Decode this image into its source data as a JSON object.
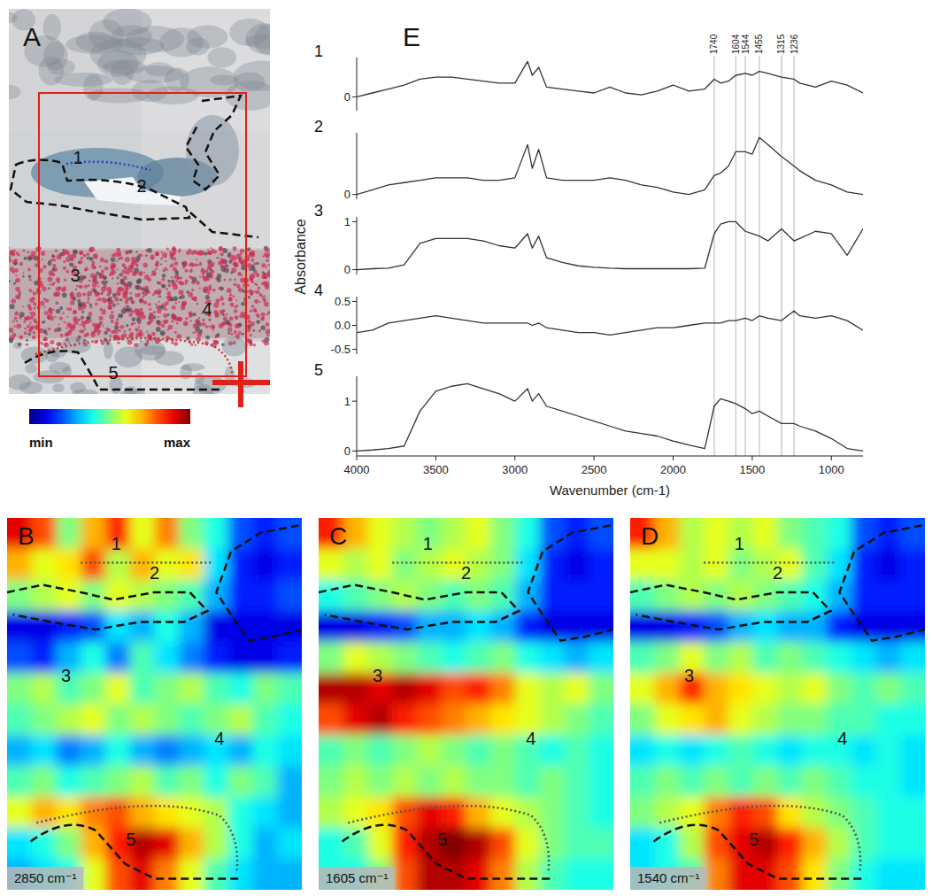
{
  "spectra_label": "E",
  "photo": {
    "title": "A",
    "region_labels": [
      "1",
      "2",
      "3",
      "4",
      "5"
    ]
  },
  "colorbar": {
    "range": [
      0,
      1
    ],
    "ticks": [
      {
        "value": 0,
        "label": "min"
      },
      {
        "value": 1,
        "label": "max"
      }
    ]
  },
  "chart_data": [
    {
      "type": "line",
      "title": "1",
      "color": "#333333",
      "tick_labels": "y",
      "xlim": [
        4000,
        800
      ],
      "ylim": [
        -0.35,
        1.0
      ],
      "yticks": [
        0
      ],
      "marker_lines": [
        1740,
        1604,
        1544,
        1455,
        1315,
        1236
      ],
      "x": [
        4000,
        3900,
        3800,
        3700,
        3600,
        3500,
        3400,
        3300,
        3200,
        3100,
        3000,
        2920,
        2890,
        2850,
        2800,
        2700,
        2600,
        2500,
        2400,
        2300,
        2200,
        2100,
        2000,
        1900,
        1800,
        1740,
        1700,
        1650,
        1604,
        1544,
        1500,
        1455,
        1400,
        1315,
        1236,
        1200,
        1100,
        1000,
        900,
        800
      ],
      "values": [
        0.0,
        0.1,
        0.2,
        0.3,
        0.45,
        0.5,
        0.5,
        0.45,
        0.4,
        0.35,
        0.35,
        0.9,
        0.55,
        0.75,
        0.25,
        0.2,
        0.15,
        0.1,
        0.25,
        0.1,
        0.05,
        0.15,
        0.3,
        0.15,
        0.2,
        0.45,
        0.35,
        0.4,
        0.55,
        0.6,
        0.55,
        0.65,
        0.6,
        0.5,
        0.45,
        0.35,
        0.25,
        0.4,
        0.3,
        0.1
      ]
    },
    {
      "type": "line",
      "title": "2",
      "color": "#333333",
      "tick_labels": "y",
      "xlim": [
        4000,
        800
      ],
      "ylim": [
        -0.1,
        1.3
      ],
      "yticks": [
        0
      ],
      "x": [
        4000,
        3900,
        3800,
        3700,
        3600,
        3500,
        3400,
        3300,
        3200,
        3100,
        3000,
        2920,
        2890,
        2850,
        2800,
        2700,
        2600,
        2500,
        2400,
        2300,
        2200,
        2100,
        2000,
        1900,
        1800,
        1740,
        1700,
        1650,
        1604,
        1544,
        1500,
        1455,
        1400,
        1315,
        1236,
        1200,
        1100,
        1000,
        900,
        800
      ],
      "values": [
        0.0,
        0.1,
        0.2,
        0.25,
        0.3,
        0.35,
        0.35,
        0.35,
        0.3,
        0.3,
        0.35,
        1.05,
        0.55,
        0.95,
        0.35,
        0.3,
        0.3,
        0.3,
        0.35,
        0.3,
        0.2,
        0.15,
        0.05,
        0.0,
        0.1,
        0.4,
        0.45,
        0.6,
        0.9,
        0.9,
        0.85,
        1.2,
        1.05,
        0.8,
        0.6,
        0.5,
        0.3,
        0.2,
        0.05,
        0.0
      ]
    },
    {
      "type": "line",
      "title": "3",
      "color": "#333333",
      "tick_labels": "y",
      "y_label": "Absorbance",
      "xlim": [
        4000,
        800
      ],
      "ylim": [
        -0.1,
        1.1
      ],
      "yticks": [
        0,
        1
      ],
      "x": [
        4000,
        3900,
        3800,
        3700,
        3600,
        3500,
        3400,
        3300,
        3200,
        3100,
        3000,
        2920,
        2890,
        2850,
        2800,
        2700,
        2600,
        2500,
        2400,
        2300,
        2200,
        2100,
        2000,
        1900,
        1800,
        1740,
        1700,
        1650,
        1604,
        1544,
        1500,
        1455,
        1400,
        1315,
        1236,
        1200,
        1100,
        1000,
        900,
        800
      ],
      "values": [
        0.0,
        0.02,
        0.03,
        0.1,
        0.55,
        0.65,
        0.65,
        0.65,
        0.6,
        0.5,
        0.45,
        0.75,
        0.45,
        0.7,
        0.25,
        0.15,
        0.08,
        0.05,
        0.03,
        0.02,
        0.02,
        0.02,
        0.02,
        0.02,
        0.03,
        0.75,
        0.95,
        1.0,
        1.0,
        0.8,
        0.75,
        0.7,
        0.6,
        0.85,
        0.6,
        0.65,
        0.8,
        0.75,
        0.3,
        0.85
      ]
    },
    {
      "type": "line",
      "title": "4",
      "color": "#333333",
      "tick_labels": "y",
      "xlim": [
        4000,
        800
      ],
      "ylim": [
        -0.6,
        0.6
      ],
      "yticks": [
        -0.5,
        {
          "value": 0,
          "label": "0.0"
        },
        0.5
      ],
      "x": [
        4000,
        3900,
        3800,
        3700,
        3600,
        3500,
        3400,
        3300,
        3200,
        3100,
        3000,
        2920,
        2890,
        2850,
        2800,
        2700,
        2600,
        2500,
        2400,
        2300,
        2200,
        2100,
        2000,
        1900,
        1800,
        1740,
        1700,
        1650,
        1604,
        1544,
        1500,
        1455,
        1400,
        1315,
        1236,
        1200,
        1100,
        1000,
        900,
        800
      ],
      "values": [
        -0.15,
        -0.1,
        0.05,
        0.1,
        0.15,
        0.2,
        0.15,
        0.1,
        0.05,
        0.05,
        0.05,
        0.05,
        0.0,
        0.05,
        -0.05,
        -0.1,
        -0.15,
        -0.15,
        -0.2,
        -0.15,
        -0.1,
        -0.05,
        -0.05,
        0.0,
        0.05,
        0.05,
        0.05,
        0.1,
        0.1,
        0.15,
        0.1,
        0.2,
        0.15,
        0.1,
        0.3,
        0.2,
        0.15,
        0.2,
        0.1,
        -0.1
      ]
    },
    {
      "type": "line",
      "title": "5",
      "color": "#333333",
      "x_label": "Wavenumber (cm-1)",
      "xlim": [
        4000,
        800
      ],
      "xticks": [
        4000,
        3500,
        3000,
        2500,
        2000,
        1500,
        1000
      ],
      "ylim": [
        -0.1,
        1.5
      ],
      "yticks": [
        0,
        1
      ],
      "x": [
        4000,
        3900,
        3800,
        3700,
        3600,
        3500,
        3400,
        3300,
        3200,
        3100,
        3000,
        2920,
        2890,
        2850,
        2800,
        2700,
        2600,
        2500,
        2400,
        2300,
        2200,
        2100,
        2000,
        1900,
        1800,
        1740,
        1700,
        1650,
        1604,
        1544,
        1500,
        1455,
        1400,
        1315,
        1236,
        1200,
        1100,
        1000,
        900,
        800
      ],
      "values": [
        0.0,
        0.02,
        0.05,
        0.1,
        0.8,
        1.2,
        1.3,
        1.35,
        1.25,
        1.15,
        1.0,
        1.25,
        1.0,
        1.15,
        0.9,
        0.8,
        0.7,
        0.6,
        0.5,
        0.4,
        0.35,
        0.3,
        0.2,
        0.12,
        0.05,
        0.9,
        1.05,
        1.0,
        0.95,
        0.85,
        0.75,
        0.8,
        0.7,
        0.55,
        0.55,
        0.5,
        0.4,
        0.25,
        0.05,
        0.0
      ]
    },
    {
      "type": "heatmap",
      "title": "B",
      "label": "2850 cm⁻¹",
      "region_labels": [
        "1",
        "2",
        "3",
        "4",
        "5"
      ],
      "cells": [
        [
          0.9,
          0.8,
          0.5,
          0.7,
          0.85,
          0.6,
          0.75,
          0.5,
          0.4,
          0.2,
          0.15,
          0.2
        ],
        [
          0.7,
          0.6,
          0.65,
          0.8,
          0.55,
          0.7,
          0.6,
          0.65,
          0.35,
          0.15,
          0.1,
          0.15
        ],
        [
          0.5,
          0.55,
          0.6,
          0.5,
          0.6,
          0.55,
          0.5,
          0.45,
          0.3,
          0.15,
          0.15,
          0.2
        ],
        [
          0.1,
          0.1,
          0.15,
          0.2,
          0.35,
          0.3,
          0.4,
          0.3,
          0.1,
          0.1,
          0.1,
          0.1
        ],
        [
          0.2,
          0.15,
          0.3,
          0.4,
          0.25,
          0.45,
          0.35,
          0.25,
          0.15,
          0.1,
          0.1,
          0.15
        ],
        [
          0.5,
          0.55,
          0.45,
          0.5,
          0.6,
          0.45,
          0.5,
          0.55,
          0.45,
          0.4,
          0.5,
          0.45
        ],
        [
          0.45,
          0.5,
          0.55,
          0.6,
          0.5,
          0.55,
          0.5,
          0.45,
          0.5,
          0.55,
          0.45,
          0.4
        ],
        [
          0.3,
          0.35,
          0.25,
          0.3,
          0.4,
          0.3,
          0.25,
          0.3,
          0.35,
          0.3,
          0.4,
          0.35
        ],
        [
          0.45,
          0.5,
          0.4,
          0.45,
          0.5,
          0.55,
          0.45,
          0.5,
          0.4,
          0.5,
          0.45,
          0.3
        ],
        [
          0.6,
          0.7,
          0.65,
          0.75,
          0.8,
          0.7,
          0.65,
          0.6,
          0.55,
          0.4,
          0.35,
          0.3
        ],
        [
          0.35,
          0.4,
          0.5,
          0.7,
          0.85,
          0.95,
          0.9,
          0.7,
          0.55,
          0.4,
          0.3,
          0.35
        ],
        [
          0.3,
          0.35,
          0.4,
          0.6,
          0.8,
          0.9,
          0.75,
          0.6,
          0.45,
          0.35,
          0.3,
          0.3
        ]
      ]
    },
    {
      "type": "heatmap",
      "title": "C",
      "label": "1605 cm⁻¹",
      "region_labels": [
        "1",
        "2",
        "3",
        "4",
        "5"
      ],
      "cells": [
        [
          0.85,
          0.7,
          0.6,
          0.55,
          0.5,
          0.55,
          0.6,
          0.5,
          0.4,
          0.2,
          0.15,
          0.2
        ],
        [
          0.6,
          0.55,
          0.6,
          0.5,
          0.55,
          0.6,
          0.55,
          0.5,
          0.35,
          0.15,
          0.1,
          0.15
        ],
        [
          0.4,
          0.45,
          0.5,
          0.55,
          0.5,
          0.45,
          0.5,
          0.45,
          0.3,
          0.15,
          0.15,
          0.15
        ],
        [
          0.1,
          0.1,
          0.15,
          0.2,
          0.3,
          0.3,
          0.35,
          0.3,
          0.15,
          0.1,
          0.1,
          0.1
        ],
        [
          0.5,
          0.6,
          0.55,
          0.5,
          0.45,
          0.4,
          0.45,
          0.5,
          0.4,
          0.35,
          0.3,
          0.35
        ],
        [
          0.95,
          0.95,
          0.9,
          0.95,
          0.9,
          0.8,
          0.85,
          0.75,
          0.6,
          0.55,
          0.6,
          0.5
        ],
        [
          0.8,
          0.9,
          0.95,
          0.85,
          0.8,
          0.75,
          0.7,
          0.65,
          0.6,
          0.55,
          0.5,
          0.45
        ],
        [
          0.45,
          0.5,
          0.45,
          0.5,
          0.55,
          0.5,
          0.45,
          0.5,
          0.45,
          0.4,
          0.45,
          0.4
        ],
        [
          0.5,
          0.55,
          0.5,
          0.55,
          0.5,
          0.55,
          0.5,
          0.5,
          0.45,
          0.5,
          0.45,
          0.4
        ],
        [
          0.55,
          0.6,
          0.65,
          0.8,
          0.9,
          0.85,
          0.7,
          0.6,
          0.55,
          0.5,
          0.45,
          0.4
        ],
        [
          0.4,
          0.45,
          0.6,
          0.85,
          0.95,
          1.0,
          0.95,
          0.8,
          0.6,
          0.5,
          0.45,
          0.45
        ],
        [
          0.4,
          0.4,
          0.5,
          0.8,
          0.95,
          0.95,
          0.9,
          0.75,
          0.55,
          0.45,
          0.4,
          0.4
        ]
      ]
    },
    {
      "type": "heatmap",
      "title": "D",
      "label": "1540 cm⁻¹",
      "region_labels": [
        "1",
        "2",
        "3",
        "4",
        "5"
      ],
      "cells": [
        [
          0.85,
          0.7,
          0.55,
          0.6,
          0.55,
          0.6,
          0.5,
          0.45,
          0.4,
          0.2,
          0.15,
          0.2
        ],
        [
          0.6,
          0.6,
          0.55,
          0.6,
          0.5,
          0.55,
          0.6,
          0.45,
          0.35,
          0.15,
          0.1,
          0.15
        ],
        [
          0.45,
          0.5,
          0.55,
          0.5,
          0.55,
          0.5,
          0.45,
          0.4,
          0.3,
          0.15,
          0.15,
          0.15
        ],
        [
          0.1,
          0.1,
          0.15,
          0.2,
          0.3,
          0.35,
          0.3,
          0.3,
          0.15,
          0.1,
          0.1,
          0.1
        ],
        [
          0.45,
          0.5,
          0.6,
          0.5,
          0.55,
          0.45,
          0.5,
          0.45,
          0.4,
          0.35,
          0.3,
          0.35
        ],
        [
          0.6,
          0.7,
          0.85,
          0.7,
          0.65,
          0.6,
          0.55,
          0.6,
          0.5,
          0.45,
          0.5,
          0.45
        ],
        [
          0.5,
          0.6,
          0.65,
          0.7,
          0.6,
          0.55,
          0.5,
          0.5,
          0.45,
          0.45,
          0.4,
          0.4
        ],
        [
          0.35,
          0.4,
          0.35,
          0.4,
          0.45,
          0.4,
          0.35,
          0.4,
          0.4,
          0.35,
          0.4,
          0.35
        ],
        [
          0.45,
          0.5,
          0.45,
          0.5,
          0.45,
          0.5,
          0.45,
          0.5,
          0.45,
          0.4,
          0.4,
          0.35
        ],
        [
          0.5,
          0.55,
          0.6,
          0.75,
          0.85,
          0.8,
          0.65,
          0.55,
          0.5,
          0.45,
          0.4,
          0.4
        ],
        [
          0.35,
          0.4,
          0.55,
          0.8,
          0.9,
          0.95,
          0.85,
          0.7,
          0.55,
          0.45,
          0.4,
          0.4
        ],
        [
          0.35,
          0.4,
          0.45,
          0.75,
          0.9,
          0.9,
          0.8,
          0.65,
          0.5,
          0.4,
          0.35,
          0.35
        ]
      ]
    }
  ]
}
